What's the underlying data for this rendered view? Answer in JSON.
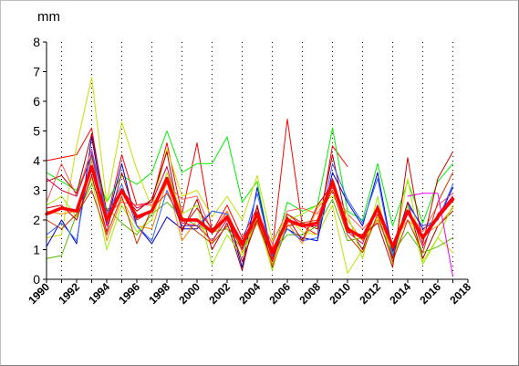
{
  "chart_data": {
    "type": "line",
    "unit_label": "mm",
    "xlim": [
      1990,
      2018
    ],
    "ylim": [
      0,
      8
    ],
    "x_ticks": [
      "1990",
      "1992",
      "1994",
      "1996",
      "1998",
      "2000",
      "2002",
      "2004",
      "2006",
      "2008",
      "2010",
      "2012",
      "2014",
      "2016",
      "2018"
    ],
    "y_ticks": [
      "0",
      "1",
      "2",
      "3",
      "4",
      "5",
      "6",
      "7",
      "8"
    ],
    "x": [
      1990,
      1991,
      1992,
      1993,
      1994,
      1995,
      1996,
      1997,
      1998,
      1999,
      2000,
      2001,
      2002,
      2003,
      2004,
      2005,
      2006,
      2007,
      2008,
      2009,
      2010,
      2011,
      2012,
      2013,
      2014,
      2015,
      2016,
      2017
    ],
    "grid": "vertical dotted lines at every odd year",
    "highlight": {
      "color": "#ff0000",
      "values": [
        2.2,
        2.4,
        2.3,
        3.8,
        2.0,
        3.0,
        2.1,
        2.3,
        3.4,
        2.0,
        2.0,
        1.6,
        2.1,
        1.2,
        2.2,
        0.9,
        2.0,
        1.8,
        1.9,
        3.3,
        1.7,
        1.4,
        2.4,
        1.1,
        2.3,
        1.4,
        2.1,
        2.7
      ]
    },
    "series": [
      {
        "color": "#ff0000",
        "values": [
          4.0,
          4.1,
          4.2,
          5.1,
          2.0,
          4.2,
          2.5,
          2.6,
          4.6,
          2.2,
          4.6,
          1.6,
          2.5,
          1.4,
          2.4,
          1.0,
          5.4,
          1.8,
          1.5,
          4.5,
          3.8,
          null,
          null,
          null,
          null,
          null,
          null,
          null
        ]
      },
      {
        "color": "#00ee00",
        "values": [
          3.6,
          3.3,
          3.0,
          4.1,
          2.6,
          3.5,
          3.2,
          3.6,
          5.0,
          3.6,
          3.9,
          3.9,
          4.8,
          2.6,
          3.3,
          0.7,
          2.6,
          2.3,
          2.5,
          5.1,
          2.3,
          2.0,
          3.9,
          1.8,
          3.3,
          1.9,
          3.3,
          3.9
        ]
      },
      {
        "color": "#c8e000",
        "values": [
          1.4,
          1.5,
          4.5,
          6.8,
          2.6,
          5.3,
          3.7,
          2.4,
          4.4,
          2.8,
          3.0,
          2.1,
          2.8,
          2.0,
          3.5,
          1.3,
          2.1,
          1.6,
          1.5,
          2.5,
          0.2,
          1.0,
          2.1,
          0.7,
          3.4,
          0.6,
          1.4,
          0.9
        ]
      },
      {
        "color": "#0000cc",
        "values": [
          1.1,
          2.0,
          1.2,
          4.8,
          1.9,
          3.9,
          1.8,
          1.2,
          2.1,
          1.7,
          1.7,
          2.3,
          2.2,
          0.4,
          3.1,
          0.8,
          1.7,
          1.4,
          1.3,
          3.6,
          2.6,
          1.8,
          3.6,
          0.9,
          2.6,
          1.7,
          2.0,
          3.1
        ]
      },
      {
        "color": "#aa0000",
        "values": [
          3.3,
          3.5,
          2.9,
          4.9,
          2.3,
          2.9,
          2.3,
          2.7,
          4.3,
          1.6,
          2.7,
          1.0,
          1.9,
          0.3,
          2.5,
          0.4,
          1.8,
          1.9,
          1.7,
          4.2,
          1.8,
          1.0,
          2.5,
          0.7,
          2.6,
          0.7,
          1.8,
          2.3
        ]
      },
      {
        "color": "#ff5555",
        "values": [
          2.6,
          3.9,
          2.8,
          4.4,
          2.2,
          2.6,
          2.5,
          2.5,
          3.2,
          2.7,
          2.8,
          1.6,
          2.3,
          1.1,
          2.3,
          1.2,
          2.3,
          2.4,
          2.2,
          3.1,
          2.2,
          1.7,
          2.2,
          1.1,
          2.3,
          1.6,
          2.5,
          2.9
        ]
      },
      {
        "color": "#55bb00",
        "values": [
          0.7,
          0.8,
          2.2,
          3.2,
          2.4,
          1.9,
          1.5,
          2.2,
          2.6,
          2.1,
          1.8,
          1.6,
          1.7,
          1.0,
          1.9,
          0.9,
          1.5,
          1.5,
          1.8,
          2.7,
          1.3,
          1.4,
          2.0,
          0.9,
          1.6,
          0.9,
          1.1,
          1.4
        ]
      },
      {
        "color": "#ff8800",
        "values": [
          2.3,
          2.2,
          2.3,
          4.0,
          1.3,
          2.7,
          1.8,
          1.7,
          3.3,
          1.3,
          2.0,
          1.2,
          2.3,
          0.9,
          1.9,
          0.5,
          1.9,
          1.2,
          2.4,
          3.0,
          2.0,
          1.3,
          2.0,
          1.2,
          2.0,
          1.5,
          1.8,
          2.4
        ]
      },
      {
        "color": "#3366ff",
        "values": [
          1.5,
          1.9,
          1.3,
          4.3,
          2.2,
          3.2,
          1.8,
          1.3,
          3.0,
          1.8,
          1.8,
          2.3,
          2.2,
          1.2,
          2.9,
          0.8,
          1.7,
          1.3,
          1.4,
          3.9,
          2.7,
          1.9,
          3.4,
          0.8,
          2.5,
          1.8,
          2.0,
          3.2
        ]
      },
      {
        "color": "#dd0055",
        "values": [
          3.4,
          3.0,
          2.8,
          4.2,
          1.8,
          3.0,
          2.4,
          2.6,
          3.8,
          1.9,
          1.8,
          1.3,
          2.0,
          1.0,
          2.3,
          0.7,
          2.2,
          1.8,
          1.8,
          3.4,
          1.6,
          1.2,
          2.5,
          1.0,
          2.5,
          1.1,
          2.2,
          2.8
        ]
      },
      {
        "color": "#99ee00",
        "values": [
          2.5,
          2.8,
          2.1,
          3.4,
          1.0,
          2.5,
          1.6,
          2.0,
          3.6,
          2.2,
          2.5,
          0.5,
          1.5,
          0.8,
          2.1,
          0.3,
          2.0,
          2.2,
          2.5,
          2.8,
          2.2,
          0.7,
          2.8,
          0.5,
          2.5,
          0.5,
          1.4,
          2.5
        ]
      },
      {
        "color": "#cc3300",
        "values": [
          2.0,
          1.7,
          2.2,
          3.0,
          1.5,
          2.8,
          1.2,
          2.4,
          2.9,
          2.0,
          1.6,
          1.2,
          1.8,
          1.1,
          2.0,
          0.6,
          2.2,
          1.9,
          2.0,
          3.0,
          1.5,
          0.9,
          2.2,
          0.6,
          2.0,
          0.9,
          2.6,
          3.6
        ]
      },
      {
        "color": "#ee00ee",
        "values": [
          null,
          null,
          null,
          null,
          null,
          null,
          null,
          null,
          null,
          null,
          null,
          null,
          null,
          null,
          null,
          null,
          null,
          null,
          null,
          null,
          null,
          null,
          null,
          null,
          2.8,
          2.9,
          2.9,
          0.1
        ]
      },
      {
        "color": "#cc0000",
        "values": [
          2.4,
          2.5,
          2.0,
          3.5,
          1.6,
          3.6,
          2.0,
          2.3,
          3.4,
          1.7,
          2.4,
          1.7,
          2.1,
          0.6,
          2.0,
          0.6,
          2.1,
          1.3,
          2.5,
          3.2,
          1.6,
          1.5,
          1.9,
          0.4,
          4.1,
          1.2,
          3.4,
          4.3
        ]
      }
    ]
  }
}
